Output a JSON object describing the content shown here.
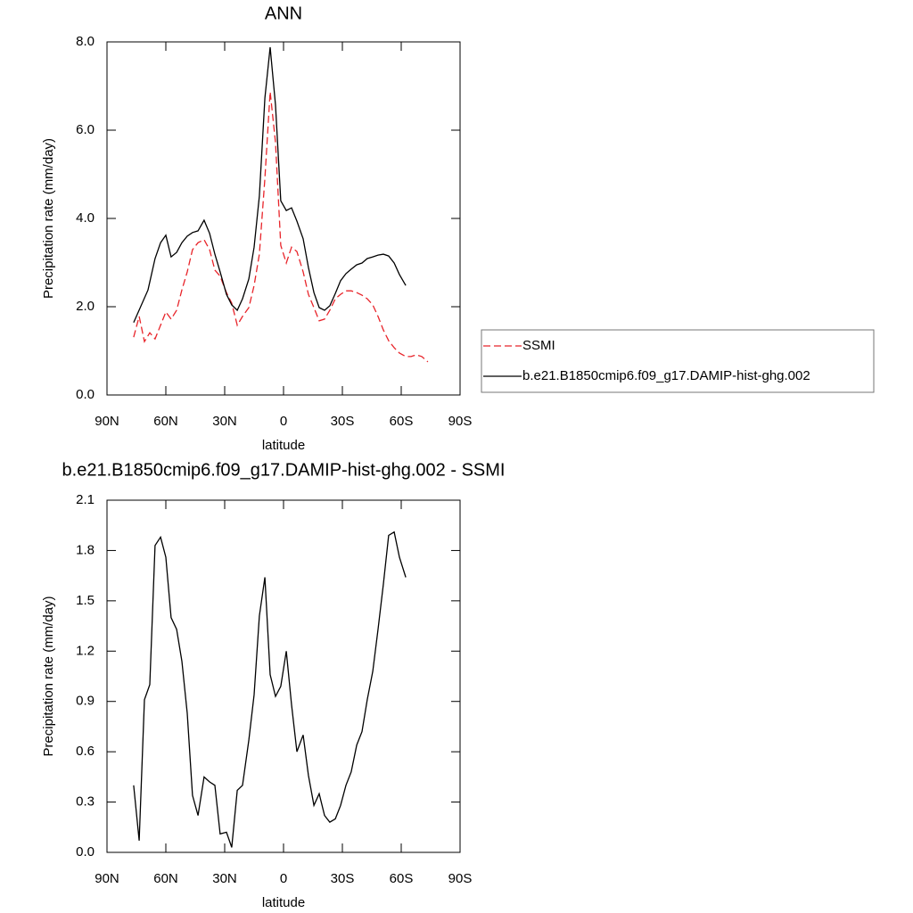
{
  "chart_data": [
    {
      "type": "line",
      "title": "ANN",
      "xlabel": "latitude",
      "ylabel": "Precipitation rate (mm/day)",
      "xlim": [
        90,
        -90
      ],
      "xticks": [
        {
          "value": 90,
          "label": "90N"
        },
        {
          "value": 60,
          "label": "60N"
        },
        {
          "value": 30,
          "label": "30N"
        },
        0,
        {
          "value": -30,
          "label": "30S"
        },
        {
          "value": -60,
          "label": "60S"
        },
        {
          "value": -90,
          "label": "90S"
        }
      ],
      "ylim": [
        0,
        8
      ],
      "yticks": [
        {
          "value": 0,
          "label": "0.0"
        },
        {
          "value": 2,
          "label": "2.0"
        },
        {
          "value": 4,
          "label": "4.0"
        },
        {
          "value": 6,
          "label": "6.0"
        },
        {
          "value": 8,
          "label": "8.0"
        }
      ],
      "legend": "right",
      "series": [
        {
          "name": "SSMI",
          "color": "#e8242a",
          "line_style": "dashed",
          "x": [
            76.4,
            73.6,
            70.9,
            68.2,
            65.5,
            62.7,
            60,
            57.3,
            54.5,
            51.8,
            49.1,
            46.4,
            43.6,
            40.5,
            37.7,
            35,
            32.3,
            29.1,
            26.4,
            23.6,
            20.9,
            17.7,
            15,
            12.3,
            9.5,
            6.8,
            4.1,
            1.4,
            -1.4,
            -4.1,
            -6.8,
            -10,
            -12.7,
            -15.5,
            -18.2,
            -20.9,
            -23.6,
            -26.4,
            -29.1,
            -31.8,
            -34.5,
            -37.3,
            -40,
            -42.7,
            -45.5,
            -48.2,
            -50.9,
            -53.6,
            -56.4,
            -59.1,
            -62.3,
            -65,
            -67.7,
            -70.5,
            -73.6
          ],
          "values": [
            1.31,
            1.78,
            1.21,
            1.41,
            1.27,
            1.58,
            1.88,
            1.72,
            1.92,
            2.38,
            2.79,
            3.29,
            3.45,
            3.52,
            3.29,
            2.83,
            2.69,
            2.32,
            2.08,
            1.58,
            1.78,
            1.98,
            2.48,
            3.19,
            4.91,
            6.87,
            5.72,
            3.39,
            2.99,
            3.35,
            3.25,
            2.79,
            2.28,
            1.98,
            1.68,
            1.72,
            1.92,
            2.18,
            2.28,
            2.36,
            2.36,
            2.32,
            2.26,
            2.18,
            2.04,
            1.78,
            1.47,
            1.23,
            1.07,
            0.95,
            0.87,
            0.87,
            0.91,
            0.87,
            0.75
          ]
        },
        {
          "name": "b.e21.B1850cmip6.f09_g17.DAMIP-hist-ghg.002",
          "color": "#000000",
          "line_style": "solid",
          "x": [
            76.4,
            69.1,
            65.5,
            62.7,
            60,
            57.3,
            54.5,
            51.8,
            49.1,
            46.4,
            43.6,
            40.5,
            37.7,
            35,
            32.3,
            29.1,
            26.4,
            23.6,
            20.9,
            17.7,
            15,
            12.3,
            9.5,
            6.8,
            4.1,
            1.4,
            -1.4,
            -4.1,
            -6.8,
            -10,
            -12.7,
            -15.5,
            -18.2,
            -20.9,
            -23.6,
            -26.4,
            -29.1,
            -31.8,
            -34.5,
            -37.3,
            -40,
            -42.7,
            -45.5,
            -48.2,
            -50.9,
            -53.6,
            -56.4,
            -59.1,
            -62.3
          ],
          "values": [
            1.64,
            2.38,
            3.09,
            3.45,
            3.62,
            3.13,
            3.23,
            3.45,
            3.6,
            3.68,
            3.72,
            3.96,
            3.66,
            3.19,
            2.79,
            2.28,
            2.04,
            1.92,
            2.18,
            2.63,
            3.35,
            4.51,
            6.73,
            7.88,
            6.57,
            4.4,
            4.18,
            4.24,
            3.94,
            3.54,
            2.89,
            2.32,
            1.98,
            1.92,
            2.02,
            2.3,
            2.59,
            2.75,
            2.85,
            2.95,
            2.99,
            3.09,
            3.13,
            3.17,
            3.19,
            3.15,
            2.99,
            2.73,
            2.48
          ]
        }
      ]
    },
    {
      "type": "line",
      "title": "b.e21.B1850cmip6.f09_g17.DAMIP-hist-ghg.002 - SSMI",
      "xlabel": "latitude",
      "ylabel": "Precipitation rate (mm/day)",
      "xlim": [
        90,
        -90
      ],
      "xticks": [
        {
          "value": 90,
          "label": "90N"
        },
        {
          "value": 60,
          "label": "60N"
        },
        {
          "value": 30,
          "label": "30N"
        },
        0,
        {
          "value": -30,
          "label": "30S"
        },
        {
          "value": -60,
          "label": "60S"
        },
        {
          "value": -90,
          "label": "90S"
        }
      ],
      "ylim": [
        0,
        2.1
      ],
      "yticks": [
        {
          "value": 0,
          "label": "0.0"
        },
        0.3,
        0.6,
        0.9,
        1.2,
        1.5,
        1.8,
        2.1
      ],
      "series": [
        {
          "color": "#000000",
          "line_style": "solid",
          "x": [
            76.4,
            73.6,
            70.9,
            68.2,
            65.5,
            62.7,
            60,
            57.3,
            54.5,
            51.8,
            49.1,
            46.4,
            43.6,
            40.5,
            37.7,
            35,
            32.3,
            29.1,
            26.4,
            23.6,
            20.9,
            17.7,
            15,
            12.3,
            9.5,
            6.8,
            4.1,
            1.4,
            -1.4,
            -4.1,
            -6.8,
            -10,
            -12.7,
            -15.5,
            -18.2,
            -20.9,
            -23.6,
            -26.4,
            -29.1,
            -31.8,
            -34.5,
            -37.3,
            -40,
            -42.7,
            -45.5,
            -48.2,
            -50.9,
            -53.6,
            -56.4,
            -59.1,
            -62.3
          ],
          "values": [
            0.4,
            0.07,
            0.91,
            1.0,
            1.83,
            1.88,
            1.76,
            1.4,
            1.33,
            1.14,
            0.83,
            0.34,
            0.22,
            0.45,
            0.42,
            0.4,
            0.11,
            0.12,
            0.03,
            0.37,
            0.4,
            0.67,
            0.94,
            1.41,
            1.64,
            1.06,
            0.93,
            0.99,
            1.2,
            0.88,
            0.6,
            0.7,
            0.46,
            0.28,
            0.35,
            0.22,
            0.18,
            0.2,
            0.28,
            0.4,
            0.48,
            0.64,
            0.72,
            0.91,
            1.08,
            1.33,
            1.6,
            1.89,
            1.91,
            1.76,
            1.64
          ]
        }
      ]
    }
  ]
}
